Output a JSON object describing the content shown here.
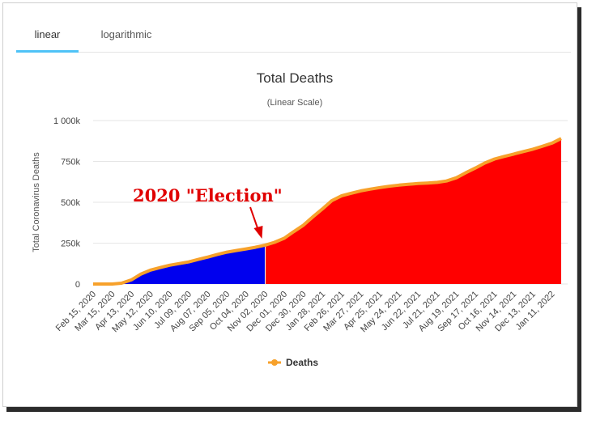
{
  "tabs": [
    {
      "label": "linear",
      "active": true
    },
    {
      "label": "logarithmic",
      "active": false
    }
  ],
  "chart_data": {
    "type": "area",
    "title": "Total Deaths",
    "subtitle": "(Linear Scale)",
    "xlabel": "",
    "ylabel": "Total Coronavirus Deaths",
    "ylim": [
      0,
      1000000
    ],
    "yticks": [
      0,
      250000,
      500000,
      750000,
      1000000
    ],
    "ytick_labels": [
      "0",
      "250k",
      "500k",
      "750k",
      "1 000k"
    ],
    "grid": true,
    "legend": "bottom",
    "x": [
      "2020-02-15",
      "2020-03-01",
      "2020-03-15",
      "2020-03-29",
      "2020-04-13",
      "2020-04-27",
      "2020-05-12",
      "2020-05-26",
      "2020-06-10",
      "2020-06-24",
      "2020-07-09",
      "2020-07-23",
      "2020-08-07",
      "2020-08-21",
      "2020-09-05",
      "2020-09-19",
      "2020-10-04",
      "2020-10-18",
      "2020-11-02",
      "2020-11-16",
      "2020-12-01",
      "2020-12-15",
      "2020-12-30",
      "2021-01-13",
      "2021-01-28",
      "2021-02-11",
      "2021-02-26",
      "2021-03-12",
      "2021-03-27",
      "2021-04-10",
      "2021-04-25",
      "2021-05-09",
      "2021-05-24",
      "2021-06-07",
      "2021-06-22",
      "2021-07-06",
      "2021-07-21",
      "2021-08-04",
      "2021-08-19",
      "2021-09-02",
      "2021-09-17",
      "2021-10-01",
      "2021-10-16",
      "2021-10-30",
      "2021-11-14",
      "2021-11-28",
      "2021-12-13",
      "2021-12-27",
      "2022-01-11",
      "2022-01-25"
    ],
    "xtick_labels": [
      "Feb 15, 2020",
      "Mar 15, 2020",
      "Apr 13, 2020",
      "May 12, 2020",
      "Jun 10, 2020",
      "Jul 09, 2020",
      "Aug 07, 2020",
      "Sep 05, 2020",
      "Oct 04, 2020",
      "Nov 02, 2020",
      "Dec 01, 2020",
      "Dec 30, 2020",
      "Jan 28, 2021",
      "Feb 26, 2021",
      "Mar 27, 2021",
      "Apr 25, 2021",
      "May 24, 2021",
      "Jun 22, 2021",
      "Jul 21, 2021",
      "Aug 19, 2021",
      "Sep 17, 2021",
      "Oct 16, 2021",
      "Nov 14, 2021",
      "Dec 13, 2021",
      "Jan 11, 2022"
    ],
    "series": [
      {
        "name": "Deaths",
        "color": "#f7a12b",
        "values": [
          0,
          0,
          0,
          5000,
          25000,
          60000,
          85000,
          100000,
          115000,
          125000,
          135000,
          150000,
          165000,
          180000,
          195000,
          205000,
          215000,
          225000,
          238000,
          255000,
          280000,
          320000,
          360000,
          410000,
          460000,
          510000,
          540000,
          555000,
          570000,
          580000,
          590000,
          598000,
          605000,
          610000,
          615000,
          618000,
          622000,
          630000,
          650000,
          680000,
          710000,
          740000,
          765000,
          780000,
          795000,
          810000,
          825000,
          842000,
          862000,
          890000
        ]
      }
    ],
    "fill_regions": [
      {
        "from": "2020-02-15",
        "to": "2020-11-02",
        "color": "#0000ee"
      },
      {
        "from": "2020-11-02",
        "to": "2022-01-25",
        "color": "#ff0000"
      }
    ],
    "annotations": [
      {
        "text": "2020 \"Election\"",
        "x": "2020-11-02",
        "color": "#e00000"
      }
    ]
  }
}
